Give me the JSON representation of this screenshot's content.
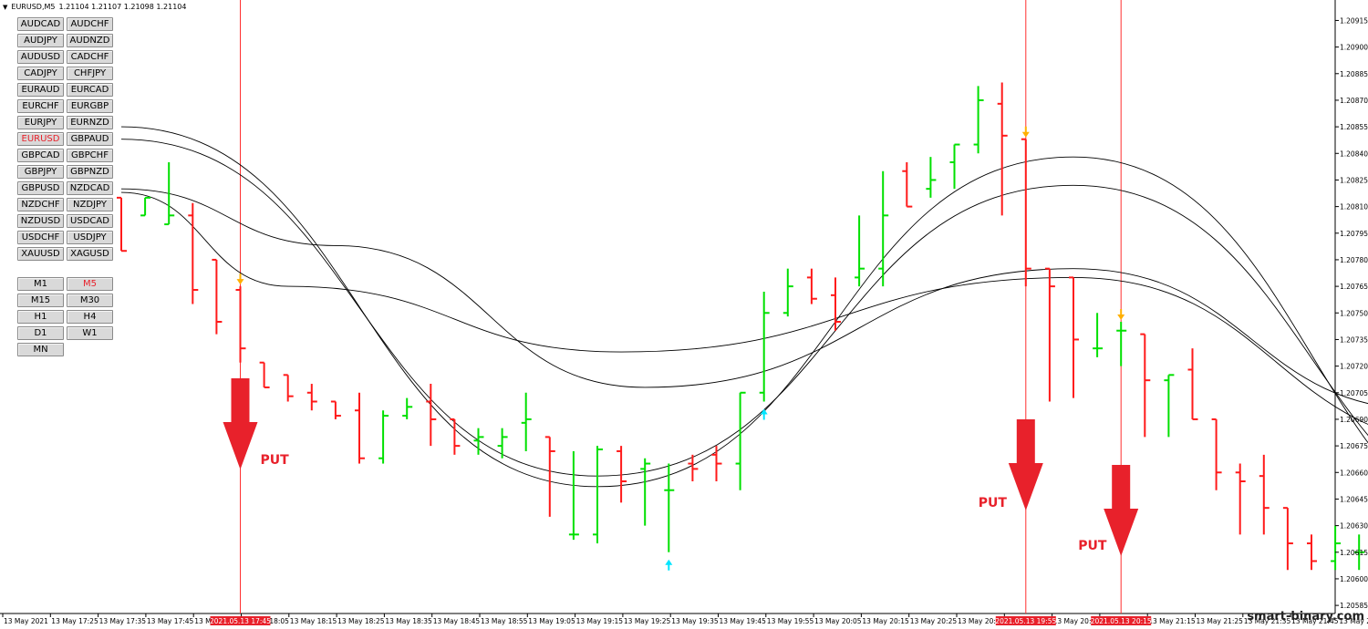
{
  "header": {
    "symbol_label": "EURUSD,M5",
    "ohlc": "1.21104 1.21107 1.21098 1.21104"
  },
  "symbol_buttons": [
    "AUDCAD",
    "AUDCHF",
    "AUDJPY",
    "AUDNZD",
    "AUDUSD",
    "CADCHF",
    "CADJPY",
    "CHFJPY",
    "EURAUD",
    "EURCAD",
    "EURCHF",
    "EURGBP",
    "EURJPY",
    "EURNZD",
    "EURUSD",
    "GBPAUD",
    "GBPCAD",
    "GBPCHF",
    "GBPJPY",
    "GBPNZD",
    "GBPUSD",
    "NZDCAD",
    "NZDCHF",
    "NZDJPY",
    "NZDUSD",
    "USDCAD",
    "USDCHF",
    "USDJPY",
    "XAUUSD",
    "XAGUSD"
  ],
  "active_symbol": "EURUSD",
  "timeframe_buttons": [
    "M1",
    "M5",
    "M15",
    "M30",
    "H1",
    "H4",
    "D1",
    "W1",
    "MN"
  ],
  "active_timeframe": "M5",
  "watermark": "smart-binary.com",
  "colors": {
    "up": "#00e000",
    "down": "#ff1a1a",
    "ma": "#000000",
    "vline": "#ff3030",
    "put_arrow": "#e8212b",
    "sell_mark": "#ffb000",
    "buy_mark": "#00e5ff"
  },
  "chart_data": {
    "type": "bar",
    "style": "ohlc",
    "title": "EURUSD,M5",
    "ylim": [
      1.20583,
      1.20925
    ],
    "y_ticks": [
      "1.20915",
      "1.20900",
      "1.20885",
      "1.20870",
      "1.20855",
      "1.20840",
      "1.20825",
      "1.20810",
      "1.20795",
      "1.20780",
      "1.20765",
      "1.20750",
      "1.20735",
      "1.20720",
      "1.20705",
      "1.20690",
      "1.20675",
      "1.20660",
      "1.20645",
      "1.20630",
      "1.20615",
      "1.20600",
      "1.20585"
    ],
    "x_ticks": [
      "13 May 2021",
      "13 May 17:25",
      "13 May 17:35",
      "13 May 17:45",
      "13 May 17:55",
      "13 May 18:05",
      "13 May 18:15",
      "13 May 18:25",
      "13 May 18:35",
      "13 May 18:45",
      "13 May 18:55",
      "13 May 19:05",
      "13 May 19:15",
      "13 May 19:25",
      "13 May 19:35",
      "13 May 19:45",
      "13 May 19:55",
      "13 May 20:05",
      "13 May 20:15",
      "13 May 20:25",
      "13 May 20:35",
      "13 May 20:45",
      "13 May 20:55",
      "13 May 21:05",
      "13 May 21:15",
      "13 May 21:25",
      "13 May 21:35",
      "13 May 21:45",
      "13 May 21:55"
    ],
    "highlight_labels": [
      "2021.05.13 17:45",
      "2021.05.13 19:55",
      "2021.05.13 20:15"
    ],
    "bars": [
      [
        1.20815,
        1.20815,
        1.20785,
        1.20785
      ],
      [
        1.20805,
        1.20805,
        1.20815,
        1.20815
      ],
      [
        1.208,
        1.208,
        1.20835,
        1.20805
      ],
      [
        1.20805,
        1.20812,
        1.20755,
        1.20763
      ],
      [
        1.2078,
        1.2078,
        1.20738,
        1.20745
      ],
      [
        1.20763,
        1.20765,
        1.20722,
        1.2073
      ],
      [
        1.20722,
        1.20722,
        1.20708,
        1.20708
      ],
      [
        1.20715,
        1.20715,
        1.207,
        1.20703
      ],
      [
        1.20705,
        1.2071,
        1.20695,
        1.207
      ],
      [
        1.207,
        1.207,
        1.2069,
        1.20692
      ],
      [
        1.20695,
        1.20705,
        1.20665,
        1.20668
      ],
      [
        1.20668,
        1.20695,
        1.20665,
        1.20692
      ],
      [
        1.20692,
        1.20702,
        1.2069,
        1.20697
      ],
      [
        1.207,
        1.2071,
        1.20675,
        1.2069
      ],
      [
        1.2069,
        1.2069,
        1.2067,
        1.20675
      ],
      [
        1.20678,
        1.20685,
        1.2067,
        1.2068
      ],
      [
        1.20675,
        1.20685,
        1.20668,
        1.2068
      ],
      [
        1.20688,
        1.20705,
        1.20672,
        1.2069
      ],
      [
        1.2068,
        1.2068,
        1.20635,
        1.20672
      ],
      [
        1.20625,
        1.20672,
        1.20622,
        1.20625
      ],
      [
        1.20625,
        1.20675,
        1.2062,
        1.20673
      ],
      [
        1.20672,
        1.20675,
        1.20643,
        1.20655
      ],
      [
        1.20662,
        1.20668,
        1.2063,
        1.20665
      ],
      [
        1.2065,
        1.20665,
        1.20615,
        1.2065
      ],
      [
        1.20665,
        1.2067,
        1.20655,
        1.20662
      ],
      [
        1.2067,
        1.20675,
        1.20655,
        1.20665
      ],
      [
        1.20665,
        1.20705,
        1.2065,
        1.20705
      ],
      [
        1.20705,
        1.20762,
        1.207,
        1.2075
      ],
      [
        1.2075,
        1.20775,
        1.20748,
        1.20765
      ],
      [
        1.2077,
        1.20775,
        1.20755,
        1.20758
      ],
      [
        1.2076,
        1.2077,
        1.2074,
        1.20745
      ],
      [
        1.2077,
        1.20805,
        1.20765,
        1.20775
      ],
      [
        1.20775,
        1.2083,
        1.20765,
        1.20805
      ],
      [
        1.2083,
        1.20835,
        1.2081,
        1.2081
      ],
      [
        1.2082,
        1.20838,
        1.20815,
        1.20825
      ],
      [
        1.20835,
        1.20845,
        1.2082,
        1.20845
      ],
      [
        1.20845,
        1.20878,
        1.2084,
        1.2087
      ],
      [
        1.20868,
        1.2088,
        1.20805,
        1.2085
      ],
      [
        1.20848,
        1.20848,
        1.20765,
        1.20775
      ],
      [
        1.20775,
        1.20775,
        1.207,
        1.20765
      ],
      [
        1.2077,
        1.2077,
        1.20702,
        1.20735
      ],
      [
        1.2073,
        1.2075,
        1.20725,
        1.2073
      ],
      [
        1.2074,
        1.20745,
        1.2072,
        1.2074
      ],
      [
        1.20738,
        1.20738,
        1.2068,
        1.20712
      ],
      [
        1.20712,
        1.20715,
        1.2068,
        1.20715
      ],
      [
        1.20718,
        1.2073,
        1.2069,
        1.2069
      ],
      [
        1.2069,
        1.2069,
        1.2065,
        1.2066
      ],
      [
        1.2066,
        1.20665,
        1.20625,
        1.20655
      ],
      [
        1.20658,
        1.2067,
        1.20625,
        1.2064
      ],
      [
        1.2064,
        1.2064,
        1.20605,
        1.2062
      ],
      [
        1.2062,
        1.20625,
        1.20605,
        1.2061
      ],
      [
        1.2061,
        1.2063,
        1.20605,
        1.2062
      ],
      [
        1.20615,
        1.20625,
        1.20605,
        1.20615
      ],
      [
        1.20615,
        1.2064,
        1.20608,
        1.20628
      ],
      [
        1.20628,
        1.20635,
        1.2059,
        1.20605
      ],
      [
        1.20605,
        1.20625,
        1.2059,
        1.2062
      ],
      [
        1.20615,
        1.20645,
        1.206,
        1.2064
      ],
      [
        1.20642,
        1.20645,
        1.206,
        1.20605
      ],
      [
        1.20625,
        1.2065,
        1.206,
        1.20625
      ],
      [
        1.20605,
        1.20645,
        1.2059,
        1.2064
      ],
      [
        1.2064,
        1.20665,
        1.20635,
        1.2066
      ],
      [
        1.2066,
        1.20688,
        1.20655,
        1.20685
      ],
      [
        1.20685,
        1.20685,
        1.2067,
        1.2068
      ],
      [
        1.2068,
        1.2069,
        1.20675,
        1.2068
      ],
      [
        1.2068,
        1.20695,
        1.2067,
        1.20685
      ],
      [
        1.20685,
        1.2071,
        1.2067,
        1.2069
      ],
      [
        1.20692,
        1.20715,
        1.20685,
        1.20715
      ],
      [
        1.207,
        1.2072,
        1.20685,
        1.20705
      ],
      [
        1.207,
        1.20722,
        1.20685,
        1.2072
      ],
      [
        1.20718,
        1.20735,
        1.2071,
        1.20732
      ],
      [
        1.20732,
        1.20742,
        1.20725,
        1.20738
      ],
      [
        1.20736,
        1.20755,
        1.20727,
        1.20747
      ],
      [
        1.20745,
        1.2077,
        1.2074,
        1.20758
      ],
      [
        1.20758,
        1.2076,
        1.20745,
        1.20752
      ],
      [
        1.20752,
        1.20752,
        1.20735,
        1.2074
      ]
    ],
    "ma_lines": [
      {
        "points": [
          [
            0,
            1.20855
          ],
          [
            20,
            1.20652
          ],
          [
            40,
            1.20838
          ],
          [
            60,
            1.20615
          ],
          [
            75,
            1.20742
          ]
        ]
      },
      {
        "points": [
          [
            0,
            1.20848
          ],
          [
            20,
            1.20658
          ],
          [
            40,
            1.20822
          ],
          [
            60,
            1.20627
          ],
          [
            75,
            1.20736
          ]
        ]
      },
      {
        "points": [
          [
            0,
            1.20818
          ],
          [
            7,
            1.20765
          ],
          [
            21,
            1.20728
          ],
          [
            40,
            1.2077
          ],
          [
            57,
            1.20675
          ],
          [
            75,
            1.20708
          ]
        ]
      },
      {
        "points": [
          [
            0,
            1.2082
          ],
          [
            9,
            1.20788
          ],
          [
            22,
            1.20708
          ],
          [
            40,
            1.20775
          ],
          [
            55,
            1.20695
          ],
          [
            75,
            1.20705
          ]
        ]
      }
    ],
    "signals": [
      {
        "bar": 5,
        "kind": "sell",
        "label": "PUT"
      },
      {
        "bar": 38,
        "kind": "sell",
        "label": "PUT"
      },
      {
        "bar": 42,
        "kind": "sell",
        "label": "PUT"
      }
    ],
    "buy_marks": [
      23,
      27,
      65,
      69
    ],
    "sell_marks": [
      5,
      38,
      42
    ],
    "annotation_text": "PUT"
  }
}
